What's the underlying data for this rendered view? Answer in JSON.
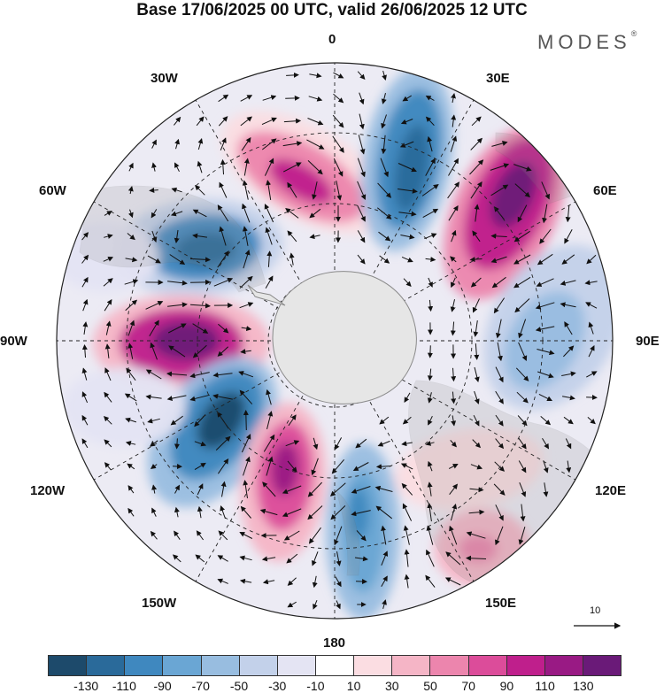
{
  "title": "Base 17/06/2025 00 UTC, valid 26/06/2025 12 UTC",
  "brand": "MODES",
  "brand_mark": "®",
  "longitude_labels": {
    "top": "0",
    "top_right": "30E",
    "right_upper": "60E",
    "right": "90E",
    "right_lower": "120E",
    "bottom_right": "150E",
    "bottom": "180",
    "bottom_left": "150W",
    "left_lower": "120W",
    "left": "90W",
    "left_upper": "60W",
    "top_left": "30W"
  },
  "vector_reference": "10",
  "colorbar": {
    "colors": [
      "#1d4a6b",
      "#2a6a9a",
      "#3f88bf",
      "#6aa6d4",
      "#98bde0",
      "#c3d1ea",
      "#e4e4f3",
      "#ffffff",
      "#fbdde2",
      "#f5b5c6",
      "#ec85ad",
      "#dc4c9a",
      "#bf1f8c",
      "#991a84",
      "#6a1a78"
    ],
    "labels": [
      "-130",
      "-110",
      "-90",
      "-70",
      "-50",
      "-30",
      "-10",
      "10",
      "30",
      "50",
      "70",
      "90",
      "110",
      "130"
    ]
  }
}
